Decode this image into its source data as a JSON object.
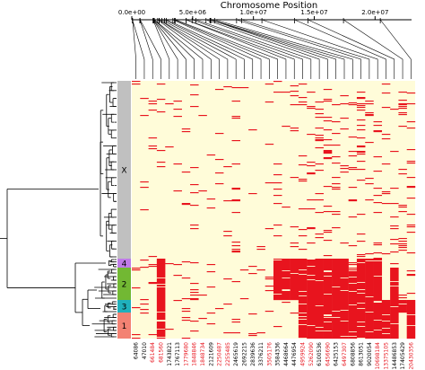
{
  "chart_data": {
    "type": "heatmap",
    "title": "Chromosome Position",
    "axis": {
      "min": 0,
      "max": 23000000,
      "ticks": [
        {
          "value": 0,
          "label": "0.0e+00"
        },
        {
          "value": 5000000,
          "label": "5.0e+06"
        },
        {
          "value": 10000000,
          "label": "1.0e+07"
        },
        {
          "value": 15000000,
          "label": "1.5e+07"
        },
        {
          "value": 20000000,
          "label": "2.0e+07"
        }
      ]
    },
    "colors": {
      "background": "#fffcd9",
      "variant": "#e8141e",
      "label_highlight": "#e8141e",
      "label_normal": "#000000",
      "dendrogram": "#000000"
    },
    "clusters": [
      {
        "label": "X",
        "color": "#c0c0c0"
      },
      {
        "label": "4",
        "color": "#bf7be8"
      },
      {
        "label": "2",
        "color": "#72b833"
      },
      {
        "label": "3",
        "color": "#1fb0bc"
      },
      {
        "label": "1",
        "color": "#f38273"
      }
    ],
    "snps": [
      {
        "position": 64086,
        "label": "64086",
        "highlight": false
      },
      {
        "position": 47010,
        "label": "47010",
        "highlight": false
      },
      {
        "position": 661484,
        "label": "661484",
        "highlight": true
      },
      {
        "position": 681560,
        "label": "681560",
        "highlight": true
      },
      {
        "position": 1743821,
        "label": "1743821",
        "highlight": false
      },
      {
        "position": 1767113,
        "label": "1767113",
        "highlight": false
      },
      {
        "position": 1779680,
        "label": "1779680",
        "highlight": true
      },
      {
        "position": 1848846,
        "label": "1848846",
        "highlight": true
      },
      {
        "position": 1848734,
        "label": "1848734",
        "highlight": true
      },
      {
        "position": 2121609,
        "label": "2121609",
        "highlight": false
      },
      {
        "position": 2250487,
        "label": "2250487",
        "highlight": true
      },
      {
        "position": 2255485,
        "label": "2255485",
        "highlight": true
      },
      {
        "position": 2465619,
        "label": "2465619",
        "highlight": false
      },
      {
        "position": 2692215,
        "label": "2692215",
        "highlight": false
      },
      {
        "position": 2839636,
        "label": "2839636",
        "highlight": false
      },
      {
        "position": 3376211,
        "label": "3376211",
        "highlight": false
      },
      {
        "position": 3505176,
        "label": "3505176",
        "highlight": true
      },
      {
        "position": 3584336,
        "label": "3584336",
        "highlight": false
      },
      {
        "position": 4468664,
        "label": "4468664",
        "highlight": false
      },
      {
        "position": 4476954,
        "label": "4476954",
        "highlight": false
      },
      {
        "position": 4959924,
        "label": "4959924",
        "highlight": true
      },
      {
        "position": 5262090,
        "label": "5262090",
        "highlight": true
      },
      {
        "position": 6100536,
        "label": "6100536",
        "highlight": false
      },
      {
        "position": 6456690,
        "label": "6456690",
        "highlight": true
      },
      {
        "position": 6425153,
        "label": "6425153",
        "highlight": false
      },
      {
        "position": 6497307,
        "label": "6497307",
        "highlight": true
      },
      {
        "position": 6808856,
        "label": "6808856",
        "highlight": false
      },
      {
        "position": 8613051,
        "label": "8613051",
        "highlight": false
      },
      {
        "position": 9020054,
        "label": "9020054",
        "highlight": false
      },
      {
        "position": 10698184,
        "label": "10698184",
        "highlight": true
      },
      {
        "position": 13375105,
        "label": "13375105",
        "highlight": true
      },
      {
        "position": 14486853,
        "label": "14486853",
        "highlight": false
      },
      {
        "position": 17405429,
        "label": "17405429",
        "highlight": false
      },
      {
        "position": 20430356,
        "label": "20430356",
        "highlight": true
      }
    ]
  }
}
